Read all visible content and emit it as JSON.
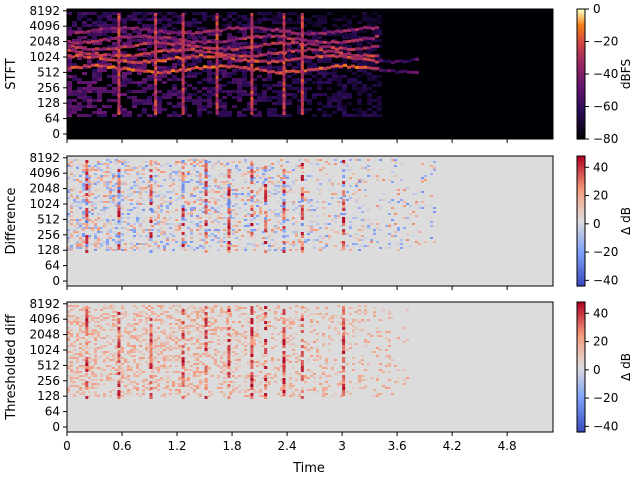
{
  "figure": {
    "xlabel": "Time",
    "xticks": [
      "0",
      "0.6",
      "1.2",
      "1.8",
      "2.4",
      "3",
      "3.6",
      "4.2",
      "4.8"
    ],
    "yticks": [
      "0",
      "64",
      "128",
      "256",
      "512",
      "1024",
      "2048",
      "4096",
      "8192"
    ]
  },
  "chart_data": [
    {
      "type": "heatmap",
      "ylabel": "STFT",
      "colormap": "magma",
      "xlim": [
        0,
        5.3
      ],
      "colorbar": {
        "label": "dBFS",
        "ticks": [
          0,
          -20,
          -40,
          -60,
          -80
        ],
        "range": [
          -80,
          0
        ]
      },
      "bands_hz": [
        600,
        950,
        1250,
        1700,
        2300,
        3400
      ],
      "activity_end_s": 3.4,
      "background": "#000004"
    },
    {
      "type": "heatmap",
      "ylabel": "Difference",
      "colormap": "coolwarm",
      "xlim": [
        0,
        5.3
      ],
      "colorbar": {
        "label": "Δ dB",
        "ticks": [
          40,
          20,
          0,
          -20,
          -40
        ],
        "range": [
          -44,
          48
        ]
      },
      "activity_end_s": 4.0,
      "background": "#dcdcdc"
    },
    {
      "type": "heatmap",
      "ylabel": "Thresholded diff",
      "colormap": "coolwarm",
      "xlim": [
        0,
        5.3
      ],
      "colorbar": {
        "label": "Δ dB",
        "ticks": [
          40,
          20,
          0,
          -20,
          -40
        ],
        "range": [
          -44,
          48
        ]
      },
      "activity_end_s": 3.7,
      "background": "#dcdcdc"
    }
  ]
}
